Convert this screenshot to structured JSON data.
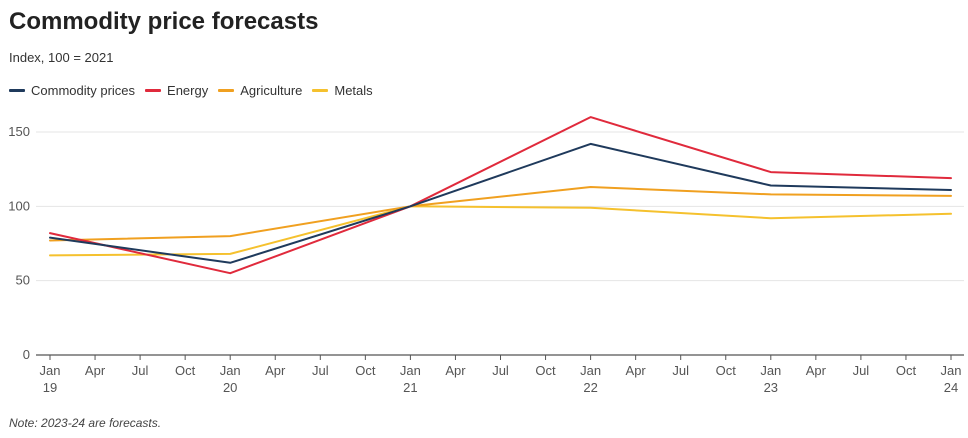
{
  "chart_data": {
    "type": "line",
    "title": "Commodity price forecasts",
    "subtitle": "Index, 100 = 2021",
    "note": "Note: 2023-24 are forecasts.",
    "xlabel": "",
    "ylabel": "",
    "ylim": [
      0,
      160
    ],
    "yticks": [
      0,
      50,
      100,
      150
    ],
    "x": [
      "Jan 19",
      "Jan 20",
      "Jan 21",
      "Jan 22",
      "Jan 23",
      "Jan 24"
    ],
    "x_months": [
      0,
      12,
      24,
      36,
      48,
      60
    ],
    "x_tick_labels": [
      {
        "month": 0,
        "line1": "Jan",
        "line2": "19"
      },
      {
        "month": 3,
        "line1": "Apr",
        "line2": ""
      },
      {
        "month": 6,
        "line1": "Jul",
        "line2": ""
      },
      {
        "month": 9,
        "line1": "Oct",
        "line2": ""
      },
      {
        "month": 12,
        "line1": "Jan",
        "line2": "20"
      },
      {
        "month": 15,
        "line1": "Apr",
        "line2": ""
      },
      {
        "month": 18,
        "line1": "Jul",
        "line2": ""
      },
      {
        "month": 21,
        "line1": "Oct",
        "line2": ""
      },
      {
        "month": 24,
        "line1": "Jan",
        "line2": "21"
      },
      {
        "month": 27,
        "line1": "Apr",
        "line2": ""
      },
      {
        "month": 30,
        "line1": "Jul",
        "line2": ""
      },
      {
        "month": 33,
        "line1": "Oct",
        "line2": ""
      },
      {
        "month": 36,
        "line1": "Jan",
        "line2": "22"
      },
      {
        "month": 39,
        "line1": "Apr",
        "line2": ""
      },
      {
        "month": 42,
        "line1": "Jul",
        "line2": ""
      },
      {
        "month": 45,
        "line1": "Oct",
        "line2": ""
      },
      {
        "month": 48,
        "line1": "Jan",
        "line2": "23"
      },
      {
        "month": 51,
        "line1": "Apr",
        "line2": ""
      },
      {
        "month": 54,
        "line1": "Jul",
        "line2": ""
      },
      {
        "month": 57,
        "line1": "Oct",
        "line2": ""
      },
      {
        "month": 60,
        "line1": "Jan",
        "line2": "24"
      }
    ],
    "series": [
      {
        "name": "Commodity prices",
        "color": "#1f3a5c",
        "values": [
          79,
          62,
          100,
          142,
          114,
          111
        ]
      },
      {
        "name": "Energy",
        "color": "#e02a3c",
        "values": [
          82,
          55,
          100,
          160,
          123,
          119
        ]
      },
      {
        "name": "Agriculture",
        "color": "#f0a020",
        "values": [
          77,
          80,
          100,
          113,
          108,
          107
        ]
      },
      {
        "name": "Metals",
        "color": "#f5c12e",
        "values": [
          67,
          68,
          100,
          99,
          92,
          95
        ]
      }
    ],
    "grid": true,
    "legend_position": "top-left"
  }
}
